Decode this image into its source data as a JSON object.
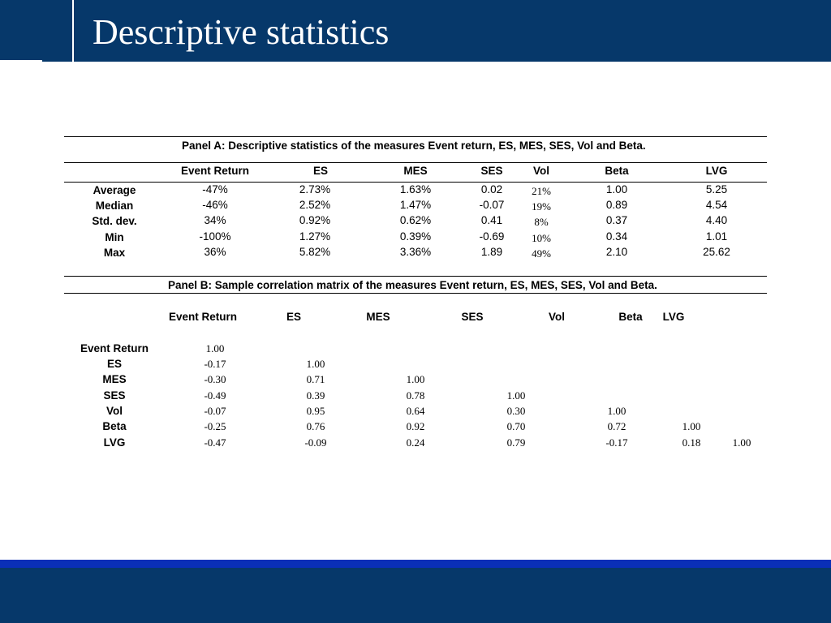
{
  "slide": {
    "title": "Descriptive statistics"
  },
  "panel_a": {
    "title": "Panel A: Descriptive statistics of the measures Event return, ES, MES, SES, Vol and Beta.",
    "headers": [
      "Event Return",
      "ES",
      "MES",
      "SES",
      "Vol",
      "Beta",
      "LVG"
    ],
    "rows": [
      {
        "label": "Average",
        "values": [
          "-47%",
          "2.73%",
          "1.63%",
          "0.02",
          "21%",
          "1.00",
          "5.25"
        ]
      },
      {
        "label": "Median",
        "values": [
          "-46%",
          "2.52%",
          "1.47%",
          "-0.07",
          "19%",
          "0.89",
          "4.54"
        ]
      },
      {
        "label": "Std. dev.",
        "values": [
          "34%",
          "0.92%",
          "0.62%",
          "0.41",
          "8%",
          "0.37",
          "4.40"
        ]
      },
      {
        "label": "Min",
        "values": [
          "-100%",
          "1.27%",
          "0.39%",
          "-0.69",
          "10%",
          "0.34",
          "1.01"
        ]
      },
      {
        "label": "Max",
        "values": [
          "36%",
          "5.82%",
          "3.36%",
          "1.89",
          "49%",
          "2.10",
          "25.62"
        ]
      }
    ]
  },
  "panel_b": {
    "title": "Panel B: Sample correlation matrix of the measures Event return, ES, MES, SES, Vol and Beta.",
    "headers": [
      "Event Return",
      "ES",
      "MES",
      "SES",
      "Vol",
      "Beta",
      "LVG"
    ],
    "rows": [
      {
        "label": "Event Return",
        "values": [
          "1.00"
        ]
      },
      {
        "label": "ES",
        "values": [
          "-0.17",
          "1.00"
        ]
      },
      {
        "label": "MES",
        "values": [
          "-0.30",
          "0.71",
          "1.00"
        ]
      },
      {
        "label": "SES",
        "values": [
          "-0.49",
          "0.39",
          "0.78",
          "1.00"
        ]
      },
      {
        "label": "Vol",
        "values": [
          "-0.07",
          "0.95",
          "0.64",
          "0.30",
          "1.00"
        ]
      },
      {
        "label": "Beta",
        "values": [
          "-0.25",
          "0.76",
          "0.92",
          "0.70",
          "0.72",
          "1.00"
        ]
      },
      {
        "label": "LVG",
        "values": [
          "-0.47",
          "-0.09",
          "0.24",
          "0.79",
          "-0.17",
          "0.18",
          "1.00"
        ]
      }
    ]
  }
}
